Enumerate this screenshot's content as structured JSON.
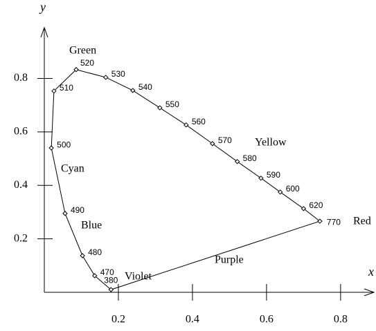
{
  "chart_data": {
    "type": "line",
    "x_label": "x",
    "y_label": "y",
    "xlim": [
      0,
      0.89
    ],
    "ylim": [
      0,
      0.99
    ],
    "xticks": [
      0.2,
      0.4,
      0.6,
      0.8
    ],
    "yticks": [
      0.2,
      0.4,
      0.6,
      0.8
    ],
    "closed": true,
    "color": "#000000",
    "wavelengths": [
      380,
      470,
      480,
      490,
      500,
      510,
      520,
      530,
      540,
      550,
      560,
      570,
      580,
      590,
      600,
      620,
      770
    ],
    "x": [
      0.18,
      0.136,
      0.103,
      0.056,
      0.019,
      0.026,
      0.086,
      0.166,
      0.239,
      0.312,
      0.383,
      0.454,
      0.521,
      0.585,
      0.637,
      0.7,
      0.744
    ],
    "values": [
      0.01,
      0.062,
      0.137,
      0.295,
      0.54,
      0.753,
      0.833,
      0.804,
      0.755,
      0.69,
      0.626,
      0.556,
      0.489,
      0.427,
      0.375,
      0.313,
      0.266
    ],
    "annotations": [
      "Green",
      "Yellow",
      "Cyan",
      "Blue",
      "Violet",
      "Purple",
      "Red"
    ]
  }
}
